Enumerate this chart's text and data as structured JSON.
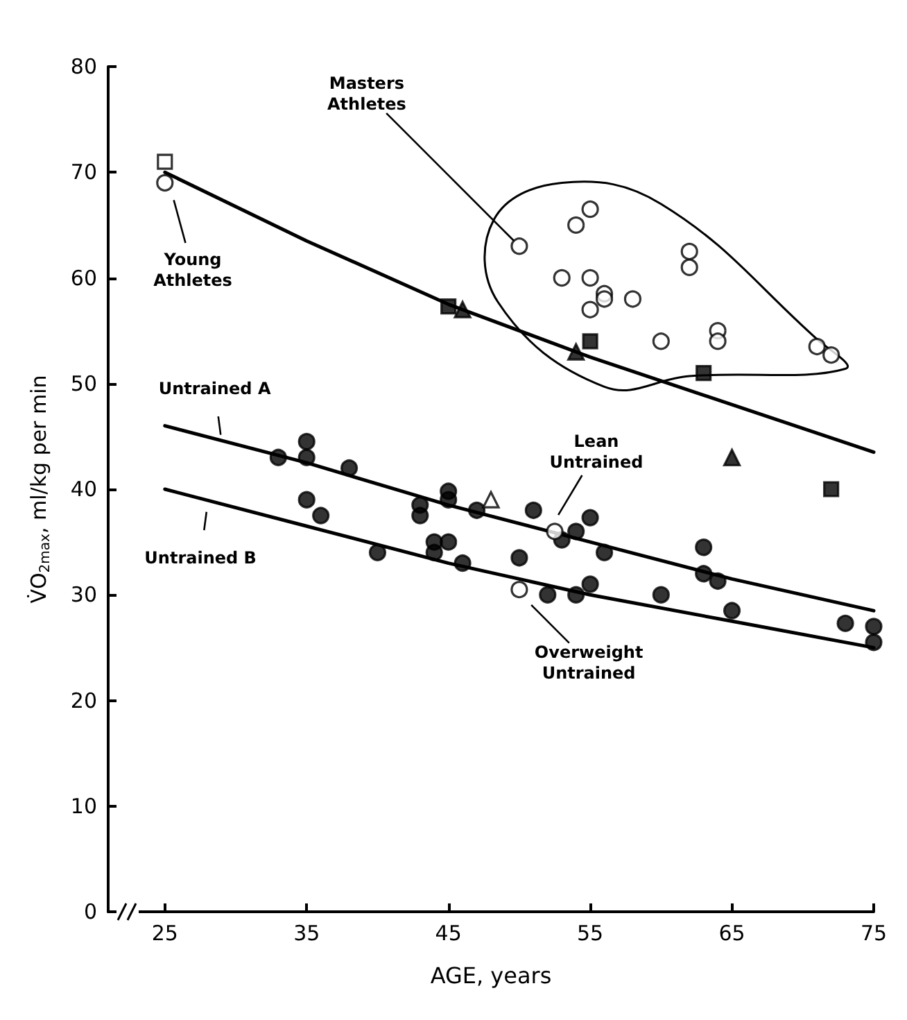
{
  "chart_data": {
    "type": "scatter",
    "xlabel": "AGE, years",
    "ylabel": "V̇O$_{2max}$, ml/kg per min",
    "xlim": [
      21,
      75
    ],
    "xticks": [
      25,
      35,
      45,
      55,
      65,
      75
    ],
    "ylim": [
      0,
      80
    ],
    "yticks": [
      0,
      10,
      20,
      30,
      40,
      50,
      60,
      70,
      80
    ],
    "series": [
      {
        "type": "line",
        "color": "#000000",
        "marker": "none",
        "line_style": "solid",
        "x": [
          25,
          35,
          45,
          55,
          65,
          75
        ],
        "values": [
          70,
          63.5,
          57.5,
          52.5,
          48,
          43.5
        ]
      },
      {
        "type": "line",
        "color": "#000000",
        "marker": "none",
        "line_style": "solid",
        "x": [
          25,
          35,
          45,
          55,
          65,
          75
        ],
        "values": [
          46,
          42.5,
          38.5,
          35,
          31.5,
          28.5
        ]
      },
      {
        "type": "line",
        "color": "#000000",
        "marker": "none",
        "line_style": "solid",
        "x": [
          25,
          35,
          45,
          55,
          65,
          75
        ],
        "values": [
          40,
          36.5,
          33,
          30,
          27.5,
          25
        ]
      },
      {
        "color": "#ffffff",
        "marker": "square",
        "x": [
          25
        ],
        "values": [
          71
        ]
      },
      {
        "color": "#ffffff",
        "marker": "circle",
        "x": [
          25
        ],
        "values": [
          69
        ]
      },
      {
        "color": "#ffffff",
        "marker": "circle",
        "x": [
          50,
          53,
          54,
          55,
          55,
          55,
          56,
          56,
          58,
          60,
          62,
          62,
          64,
          64,
          71,
          72
        ],
        "values": [
          63,
          60,
          65,
          66.5,
          60,
          57,
          58.5,
          58,
          58,
          54,
          62.5,
          61,
          55,
          54,
          53.5,
          52.7
        ]
      },
      {
        "color": "#000000",
        "marker": "triangle",
        "x": [
          46,
          54,
          65
        ],
        "values": [
          57,
          53,
          43
        ]
      },
      {
        "color": "#000000",
        "marker": "square",
        "x": [
          45,
          55,
          63,
          72
        ],
        "values": [
          57.3,
          54,
          51,
          40
        ]
      },
      {
        "color": "#000000",
        "marker": "circle",
        "x": [
          33,
          35,
          35,
          35,
          36,
          38,
          40,
          43,
          43,
          44,
          44,
          45,
          45,
          45,
          46,
          47,
          50,
          51,
          52,
          53,
          54,
          54,
          55,
          55,
          56,
          60,
          63,
          63,
          64,
          65,
          73,
          75,
          75
        ],
        "values": [
          43,
          44.5,
          43,
          39,
          37.5,
          42,
          34,
          38.5,
          37.5,
          35,
          34,
          39.8,
          39,
          35,
          33,
          38,
          33.5,
          38,
          30,
          35.2,
          36,
          30,
          37.3,
          31,
          34,
          30,
          34.5,
          32,
          31.3,
          28.5,
          27.3,
          27,
          25.5
        ]
      },
      {
        "color": "#ffffff",
        "marker": "circle",
        "x": [
          52.5
        ],
        "values": [
          36
        ]
      },
      {
        "color": "#ffffff",
        "marker": "circle",
        "x": [
          50
        ],
        "values": [
          30.5
        ]
      },
      {
        "color": "#ffffff",
        "marker": "triangle",
        "x": [
          48
        ],
        "values": [
          39
        ]
      }
    ],
    "annotations": [
      {
        "text": "Masters Athletes",
        "x": 50,
        "y": 63
      },
      {
        "text": "Young Athletes",
        "x": 25.5,
        "y": 68
      },
      {
        "text": "Untrained A",
        "x": 29,
        "y": 44.5
      },
      {
        "text": "Untrained B",
        "x": 28,
        "y": 38.5
      },
      {
        "text": "Lean Untrained",
        "x": 52.5,
        "y": 37
      },
      {
        "text": "Overweight Untrained",
        "x": 50.5,
        "y": 29.5
      }
    ]
  }
}
